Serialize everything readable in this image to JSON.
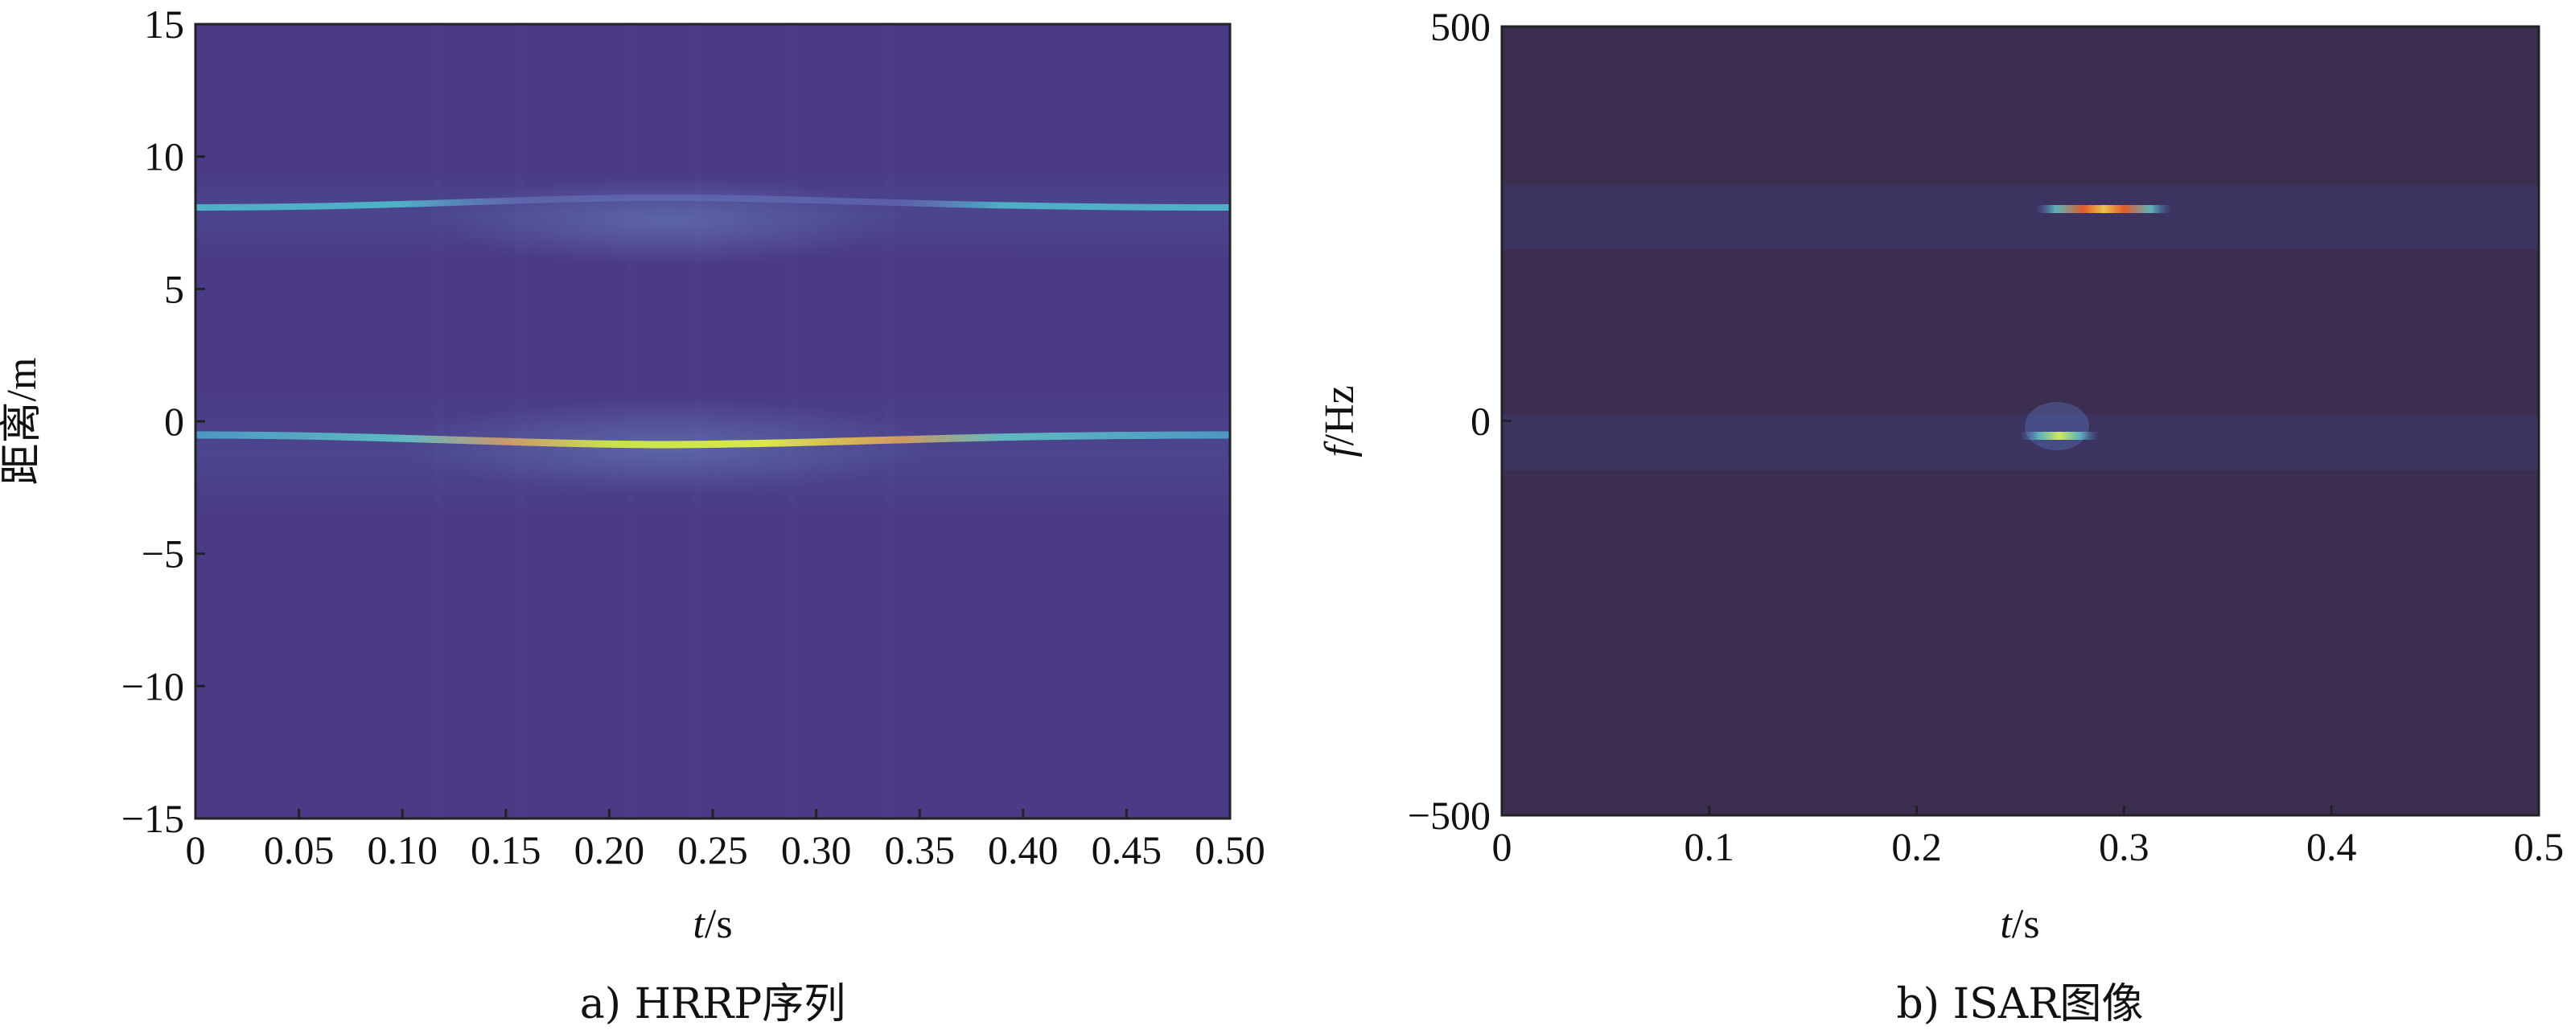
{
  "chart_data": [
    {
      "type": "heatmap",
      "panel_caption": "a) HRRP序列",
      "xlabel_italic": "t",
      "xlabel_unit": "/s",
      "ylabel": "距离/m",
      "xlim": [
        0,
        0.5
      ],
      "ylim": [
        -15,
        15
      ],
      "xticks": [
        0,
        0.05,
        0.1,
        0.15,
        0.2,
        0.25,
        0.3,
        0.35,
        0.4,
        0.45,
        0.5
      ],
      "xtick_labels": [
        "0",
        "0.05",
        "0.10",
        "0.15",
        "0.20",
        "0.25",
        "0.30",
        "0.35",
        "0.40",
        "0.45",
        "0.50"
      ],
      "yticks": [
        15,
        10,
        5,
        0,
        -5,
        -10,
        -15
      ],
      "ytick_labels": [
        "15",
        "10",
        "5",
        "0",
        "−5",
        "−10",
        "−15"
      ],
      "background_color": "#4b3b86",
      "features": [
        {
          "kind": "range-line",
          "y_start": 8.0,
          "y_min": 8.5,
          "t_center": 0.25,
          "peak_intensity": 0.55,
          "color": "#3fb7c4"
        },
        {
          "kind": "range-line",
          "y_start": -0.6,
          "y_min": -1.0,
          "t_center": 0.25,
          "peak_intensity": 1.0,
          "color": "#c8e34a"
        }
      ]
    },
    {
      "type": "heatmap",
      "panel_caption": "b) ISAR图像",
      "xlabel_italic": "t",
      "xlabel_unit": "/s",
      "ylabel_italic": "f",
      "ylabel_unit": "/Hz",
      "xlim": [
        0,
        0.5
      ],
      "ylim": [
        -500,
        500
      ],
      "xticks": [
        0,
        0.1,
        0.2,
        0.3,
        0.4,
        0.5
      ],
      "xtick_labels": [
        "0",
        "0.1",
        "0.2",
        "0.3",
        "0.4",
        "0.5"
      ],
      "yticks": [
        500,
        0,
        -500
      ],
      "ytick_labels": [
        "500",
        "0",
        "−500"
      ],
      "background_color": "#3c2e4f",
      "features": [
        {
          "kind": "hotspot",
          "t": 0.295,
          "f": 265,
          "intensity": 1.0,
          "color": "#d73c1e"
        },
        {
          "kind": "hotspot",
          "t": 0.31,
          "f": 265,
          "intensity": 0.9,
          "color": "#e04a2a"
        },
        {
          "kind": "hotspot",
          "t": 0.27,
          "f": -18,
          "intensity": 0.7,
          "color": "#c3e05a"
        }
      ]
    }
  ]
}
